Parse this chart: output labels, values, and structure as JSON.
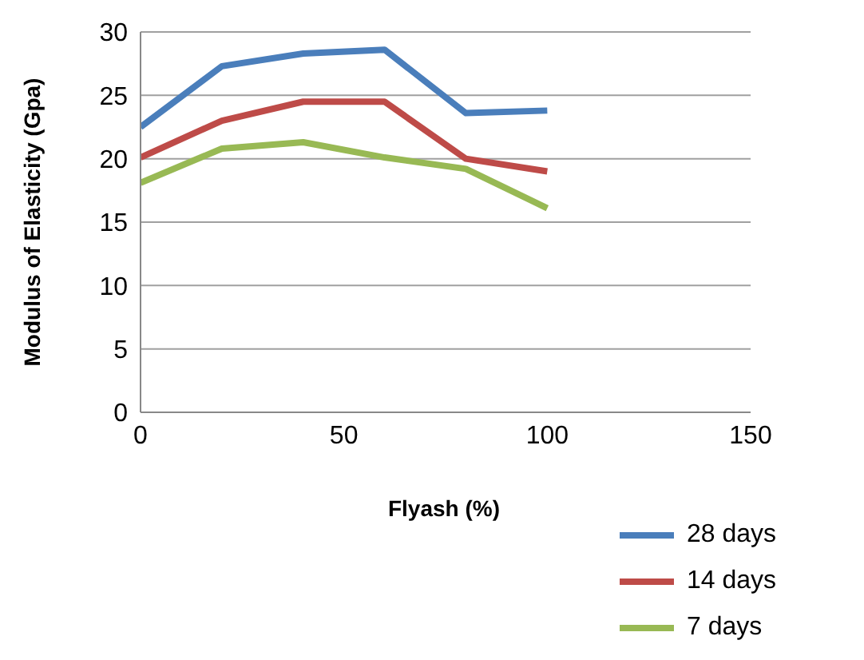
{
  "chart_data": {
    "type": "line",
    "xlabel": "Flyash (%)",
    "ylabel": "Modulus of Elasticity  (Gpa)",
    "x": [
      0,
      20,
      40,
      60,
      80,
      100
    ],
    "xlim": [
      0,
      150
    ],
    "xticks": [
      0,
      50,
      100,
      150
    ],
    "ylim": [
      0,
      30
    ],
    "yticks": [
      0,
      5,
      10,
      15,
      20,
      25,
      30
    ],
    "grid": "y",
    "legend": "bottom right",
    "marker": "none",
    "series": [
      {
        "name": "28 days",
        "color": "#4a7ebb",
        "values": [
          22.5,
          27.3,
          28.3,
          28.6,
          23.6,
          23.8
        ]
      },
      {
        "name": "14 days",
        "color": "#be4b48",
        "values": [
          20.1,
          23,
          24.5,
          24.5,
          20,
          19
        ]
      },
      {
        "name": "7 days",
        "color": "#98b954",
        "values": [
          18.1,
          20.8,
          21.3,
          20.1,
          19.2,
          16.1
        ]
      }
    ]
  }
}
